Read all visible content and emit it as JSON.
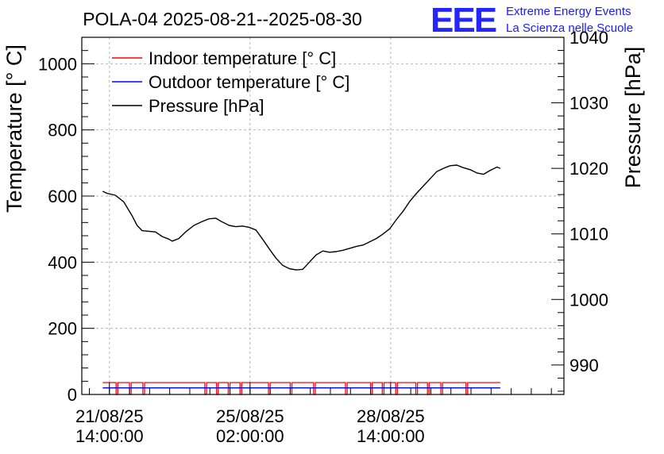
{
  "chart_data": {
    "type": "line",
    "title": "POLA-04 2025-08-21--2025-08-30",
    "ylabel": "Temperature [° C]",
    "y2label": "Pressure [hPa]",
    "ylim": [
      0,
      1080
    ],
    "y2lim": [
      985.5,
      1040
    ],
    "y_ticks": [
      "0",
      "200",
      "400",
      "600",
      "800",
      "1000"
    ],
    "y2_ticks": [
      "990",
      "1000",
      "1010",
      "1020",
      "1030",
      "1040"
    ],
    "x_ticks": [
      {
        "line1": "21/08/25",
        "line2": "14:00:00",
        "t": 16.5
      },
      {
        "line1": "25/08/25",
        "line2": "02:00:00",
        "t": 100.5
      },
      {
        "line1": "28/08/25",
        "line2": "14:00:00",
        "t": 184.5
      }
    ],
    "x_range_hours": [
      0,
      288
    ],
    "grid": true,
    "legend_position": "top-left",
    "logo": {
      "letters": "EEE",
      "line1": "Extreme Energy Events",
      "line2": "La Scienza nelle Scuole",
      "color": "#1a1aff"
    },
    "series": [
      {
        "name": "Indoor temperature [° C]",
        "color": "#ff0000",
        "axis": "left",
        "baseline": 36,
        "dropouts": [
          [
            8,
            9
          ],
          [
            16,
            17
          ],
          [
            24,
            25
          ],
          [
            61,
            62
          ],
          [
            68,
            69
          ],
          [
            75,
            76
          ],
          [
            82,
            83
          ],
          [
            99,
            100
          ],
          [
            112,
            113
          ],
          [
            126,
            127
          ],
          [
            145,
            146
          ],
          [
            160,
            161
          ],
          [
            167,
            168
          ],
          [
            175,
            176
          ],
          [
            187,
            188
          ],
          [
            194,
            195
          ],
          [
            202,
            203
          ],
          [
            217,
            218
          ]
        ],
        "t_range": [
          12.5,
          250
        ]
      },
      {
        "name": "Outdoor temperature [° C]",
        "color": "#0000ff",
        "axis": "left",
        "values": [
          [
            12.5,
            20
          ],
          [
            250,
            20
          ]
        ]
      },
      {
        "name": "Pressure [hPa]",
        "color": "#000000",
        "axis": "right",
        "values": [
          [
            12.5,
            1016.5
          ],
          [
            15,
            1016.2
          ],
          [
            20,
            1015.9
          ],
          [
            25,
            1014.9
          ],
          [
            30,
            1012.8
          ],
          [
            33,
            1011.3
          ],
          [
            36,
            1010.5
          ],
          [
            40,
            1010.4
          ],
          [
            44,
            1010.3
          ],
          [
            48,
            1009.6
          ],
          [
            52,
            1009.2
          ],
          [
            54,
            1008.9
          ],
          [
            58,
            1009.3
          ],
          [
            62,
            1010.3
          ],
          [
            67,
            1011.3
          ],
          [
            72,
            1011.9
          ],
          [
            76,
            1012.3
          ],
          [
            80,
            1012.4
          ],
          [
            84,
            1011.8
          ],
          [
            88,
            1011.3
          ],
          [
            92,
            1011.1
          ],
          [
            96,
            1011.2
          ],
          [
            100,
            1011.0
          ],
          [
            104,
            1010.6
          ],
          [
            108,
            1009.2
          ],
          [
            112,
            1007.7
          ],
          [
            116,
            1006.3
          ],
          [
            120,
            1005.2
          ],
          [
            124,
            1004.7
          ],
          [
            128,
            1004.5
          ],
          [
            132,
            1004.6
          ],
          [
            136,
            1005.7
          ],
          [
            140,
            1006.8
          ],
          [
            144,
            1007.4
          ],
          [
            148,
            1007.2
          ],
          [
            152,
            1007.3
          ],
          [
            156,
            1007.5
          ],
          [
            160,
            1007.8
          ],
          [
            164,
            1008.1
          ],
          [
            168,
            1008.3
          ],
          [
            172,
            1008.8
          ],
          [
            176,
            1009.3
          ],
          [
            180,
            1010.0
          ],
          [
            184,
            1010.8
          ],
          [
            188,
            1012.2
          ],
          [
            192,
            1013.5
          ],
          [
            196,
            1015.0
          ],
          [
            200,
            1016.2
          ],
          [
            204,
            1017.3
          ],
          [
            208,
            1018.4
          ],
          [
            212,
            1019.5
          ],
          [
            216,
            1020.0
          ],
          [
            220,
            1020.4
          ],
          [
            224,
            1020.5
          ],
          [
            228,
            1020.1
          ],
          [
            232,
            1019.8
          ],
          [
            236,
            1019.3
          ],
          [
            240,
            1019.1
          ],
          [
            244,
            1019.7
          ],
          [
            248,
            1020.2
          ],
          [
            250,
            1020.0
          ]
        ]
      }
    ]
  }
}
